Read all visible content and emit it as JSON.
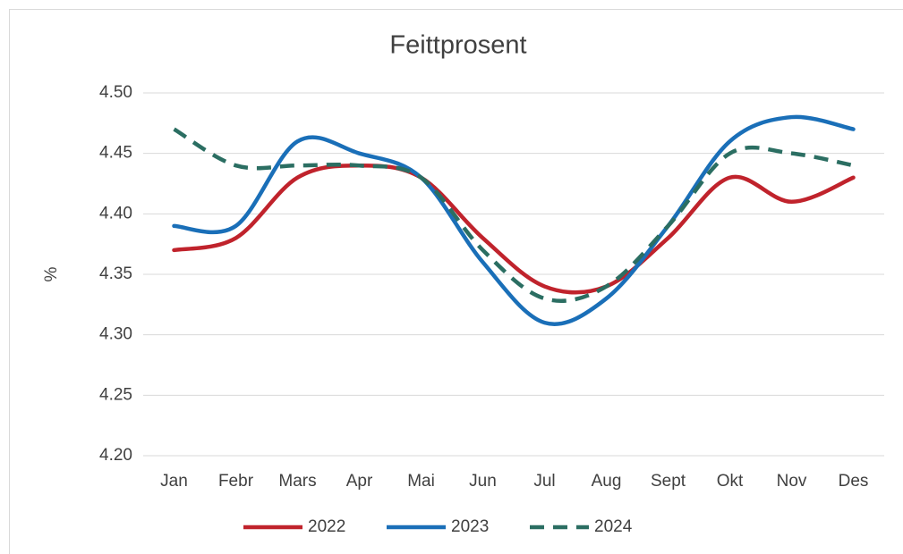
{
  "chart_data": {
    "type": "line",
    "title": "Feittprosent",
    "y_label": "%",
    "categories": [
      "Jan",
      "Febr",
      "Mars",
      "Apr",
      "Mai",
      "Jun",
      "Jul",
      "Aug",
      "Sept",
      "Okt",
      "Nov",
      "Des"
    ],
    "series": [
      {
        "name": "2022",
        "color": "#c0232c",
        "linestyle": "solid",
        "values": [
          4.37,
          4.38,
          4.43,
          4.44,
          4.43,
          4.38,
          4.34,
          4.34,
          4.38,
          4.43,
          4.41,
          4.43
        ]
      },
      {
        "name": "2023",
        "color": "#1a6fb8",
        "linestyle": "solid",
        "values": [
          4.39,
          4.39,
          4.46,
          4.45,
          4.43,
          4.36,
          4.31,
          4.33,
          4.39,
          4.46,
          4.48,
          4.47
        ]
      },
      {
        "name": "2024",
        "color": "#2b6e62",
        "linestyle": "dashed",
        "values": [
          4.47,
          4.44,
          4.44,
          4.44,
          4.43,
          4.37,
          4.33,
          4.34,
          4.39,
          4.45,
          4.45,
          4.44
        ]
      }
    ],
    "ylim": [
      4.2,
      4.5
    ],
    "yticks": [
      {
        "value": 4.2,
        "label": "4.20"
      },
      4.25,
      {
        "value": 4.3,
        "label": "4.30"
      },
      4.35,
      {
        "value": 4.4,
        "label": "4.40"
      },
      4.45,
      {
        "value": 4.5,
        "label": "4.50"
      }
    ],
    "grid": true,
    "smooth": true,
    "legend": "bottom"
  }
}
